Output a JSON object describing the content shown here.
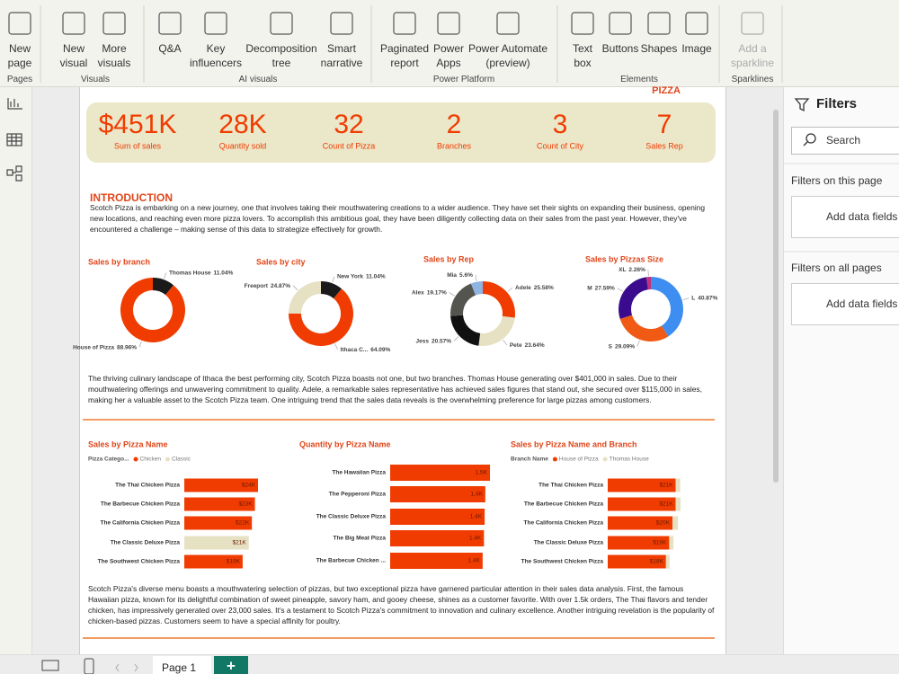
{
  "ribbon": {
    "groups": [
      {
        "label": "Pages",
        "items": [
          {
            "lines": [
              "New",
              "page"
            ]
          }
        ]
      },
      {
        "label": "Visuals",
        "items": [
          {
            "lines": [
              "New",
              "visual"
            ]
          },
          {
            "lines": [
              "More",
              "visuals"
            ]
          }
        ]
      },
      {
        "label": "AI visuals",
        "items": [
          {
            "lines": [
              "Q&A"
            ]
          },
          {
            "lines": [
              "Key",
              "influencers"
            ]
          },
          {
            "lines": [
              "Decomposition",
              "tree"
            ]
          },
          {
            "lines": [
              "Smart",
              "narrative"
            ]
          }
        ]
      },
      {
        "label": "Power Platform",
        "items": [
          {
            "lines": [
              "Paginated",
              "report"
            ]
          },
          {
            "lines": [
              "Power",
              "Apps"
            ]
          },
          {
            "lines": [
              "Power Automate",
              "(preview)"
            ]
          }
        ]
      },
      {
        "label": "Elements",
        "items": [
          {
            "lines": [
              "Text",
              "box"
            ]
          },
          {
            "lines": [
              "Buttons"
            ]
          },
          {
            "lines": [
              "Shapes"
            ]
          },
          {
            "lines": [
              "Image"
            ]
          }
        ]
      },
      {
        "label": "Sparklines",
        "items": [
          {
            "lines": [
              "Add a",
              "sparkline"
            ]
          }
        ]
      }
    ]
  },
  "report": {
    "logo": "PIZZA",
    "kpis": [
      {
        "value": "$451K",
        "label": "Sum of sales"
      },
      {
        "value": "28K",
        "label": "Quantity sold"
      },
      {
        "value": "32",
        "label": "Count of Pizza"
      },
      {
        "value": "2",
        "label": "Branches"
      },
      {
        "value": "3",
        "label": "Count of City"
      },
      {
        "value": "7",
        "label": "Sales Rep"
      }
    ],
    "intro_title": "INTRODUCTION",
    "paragraphs": [
      "Scotch Pizza is embarking on a new journey, one that involves taking their mouthwatering creations to a wider audience. They have set their sights on expanding their business, opening new locations, and reaching even more pizza lovers. To accomplish this ambitious goal, they have been diligently collecting data on their sales from the past year. However, they've encountered a challenge – making sense of this data to strategize effectively for growth.",
      "The thriving culinary landscape of Ithaca the best performing city, Scotch Pizza boasts not one, but two branches. Thomas House generating over $401,000 in sales. Due to their mouthwatering offerings and unwavering commitment to quality. Adele, a remarkable sales representative has achieved sales figures that stand out, she secured over $115,000 in sales, making her a valuable asset to the Scotch Pizza team. One intriguing trend that the sales data reveals is the overwhelming preference for large pizzas among customers.",
      "Scotch Pizza's diverse menu boasts a mouthwatering selection of pizzas, but two exceptional pizza have garnered particular attention in their sales data analysis. First, the famous Hawaiian pizza, known for its delightful combination of sweet pineapple, savory ham, and gooey cheese, shines as a customer favorite. With over 1.5k orders, The Thai flavors and tender chicken, has impressively generated over 23,000 sales. It's a testament to Scotch Pizza's commitment to innovation and culinary excellence. Another intriguing revelation is the popularity of chicken-based pizzas. Customers seem to have a special affinity for poultry."
    ]
  },
  "chart_data": [
    {
      "type": "pie",
      "title": "Sales by branch",
      "categories": [
        "Thomas House",
        "House of Pizza"
      ],
      "values": [
        11.04,
        88.96
      ],
      "value_labels": [
        "11.04%",
        "88.96%"
      ],
      "colors": [
        "#1a1a1a",
        "#f03c00"
      ]
    },
    {
      "type": "pie",
      "title": "Sales by city",
      "categories": [
        "New York",
        "Ithaca C...",
        "Freeport"
      ],
      "values": [
        11.04,
        64.09,
        24.87
      ],
      "value_labels": [
        "11.04%",
        "64.09%",
        "24.87%"
      ],
      "colors": [
        "#1a1a1a",
        "#f03c00",
        "#e6e1c3"
      ]
    },
    {
      "type": "pie",
      "title": "Sales by Rep",
      "categories": [
        "Adele",
        "Pete",
        "Jess",
        "Alex",
        "Mia"
      ],
      "values": [
        25.58,
        23.64,
        20.57,
        19.17,
        5.6
      ],
      "value_labels": [
        "25.58%",
        "23.64%",
        "20.57%",
        "19.17%",
        "5.6%"
      ],
      "colors": [
        "#f03c00",
        "#e6e1c3",
        "#111111",
        "#555550",
        "#8fb4e3"
      ]
    },
    {
      "type": "pie",
      "title": "Sales by Pizzas Size",
      "categories": [
        "L",
        "S",
        "M",
        "XL"
      ],
      "values": [
        40.87,
        29.09,
        27.59,
        2.26
      ],
      "value_labels": [
        "40.87%",
        "29.09%",
        "27.59%",
        "2.26%"
      ],
      "colors": [
        "#3d8ef0",
        "#f05a14",
        "#3a0b8c",
        "#c2307e"
      ]
    },
    {
      "type": "bar",
      "title": "Sales by Pizza Name",
      "legend_title": "Pizza Catego...",
      "categories": [
        "The Thai Chicken Pizza",
        "The Barbecue Chicken Pizza",
        "The California Chicken Pizza",
        "The Classic Deluxe Pizza",
        "The Southwest Chicken Pizza"
      ],
      "series": [
        {
          "name": "Chicken",
          "color": "#f03c00",
          "values": [
            24000,
            23000,
            22000,
            null,
            19000
          ],
          "value_labels": [
            "$24K",
            "$23K",
            "$22K",
            null,
            "$19K"
          ]
        },
        {
          "name": "Classic",
          "color": "#e6e1c3",
          "values": [
            null,
            null,
            null,
            21000,
            null
          ],
          "value_labels": [
            null,
            null,
            null,
            "$21K",
            null
          ]
        }
      ]
    },
    {
      "type": "bar",
      "title": "Quantity by Pizza Name",
      "categories": [
        "The Hawaiian Pizza",
        "The Pepperoni Pizza",
        "The Classic Deluxe Pizza",
        "The Big Meat Pizza",
        "The Barbecue Chicken ..."
      ],
      "series": [
        {
          "color": "#f03c00",
          "values": [
            1500,
            1430,
            1420,
            1410,
            1390
          ],
          "value_labels": [
            "1.5K",
            "1.4K",
            "1.4K",
            "1.4K",
            "1.4K"
          ]
        }
      ]
    },
    {
      "type": "bar",
      "stacked": true,
      "title": "Sales by Pizza Name and Branch",
      "legend_title": "Branch Name",
      "categories": [
        "The Thai Chicken Pizza",
        "The Barbecue Chicken Pizza",
        "The California Chicken Pizza",
        "The Classic Deluxe Pizza",
        "The Southwest Chicken Pizza"
      ],
      "series": [
        {
          "name": "House of Pizza",
          "color": "#f03c00",
          "values": [
            21000,
            21000,
            20000,
            19000,
            18000
          ],
          "value_labels": [
            "$21K",
            "$21K",
            "$20K",
            "$19K",
            "$18K"
          ]
        },
        {
          "name": "Thomas House",
          "color": "#e6e1c3",
          "values": [
            1400,
            1500,
            1700,
            1300,
            1100
          ]
        }
      ]
    }
  ],
  "filters": {
    "title": "Filters",
    "search": "Search",
    "this_page": "Filters on this page",
    "this_page_action": "Add data fields",
    "all_pages": "Filters on all pages",
    "all_pages_action": "Add data fields"
  },
  "tabs": {
    "pages": [
      "Page 1"
    ],
    "add": "+"
  }
}
